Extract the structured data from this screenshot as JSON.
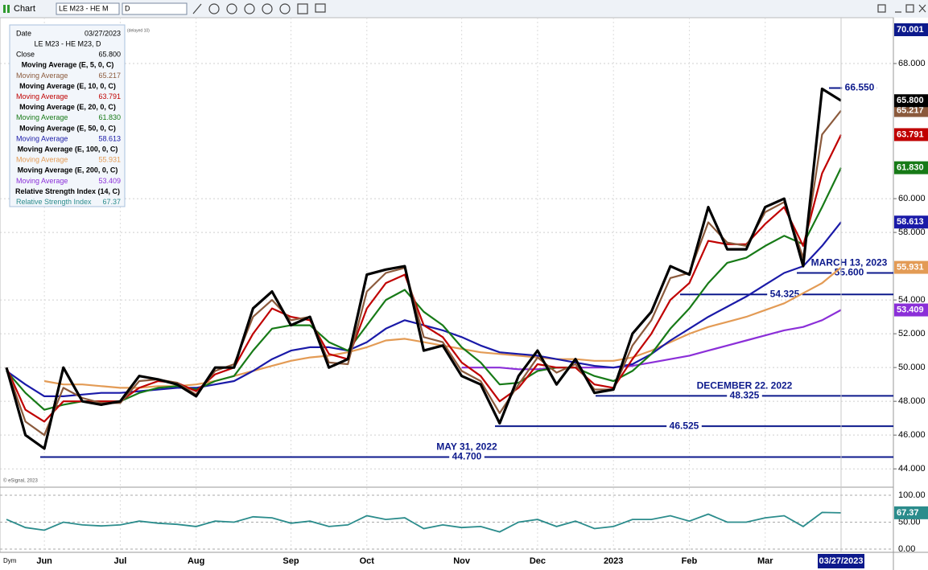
{
  "toolbar": {
    "title": "Chart",
    "symbol": "LE M23 - HE M",
    "interval": "D"
  },
  "chart_data": {
    "type": "line",
    "symbol_label": "LE M23 - HE M23, D",
    "info_date_label": "Date",
    "delay_note": "(delayed 10)",
    "copyright": "© eSignal, 2023",
    "footer_label": "Dym",
    "categories": [
      null,
      null,
      "Jun",
      null,
      null,
      null,
      "Jul",
      null,
      null,
      null,
      "Aug",
      null,
      null,
      null,
      null,
      "Sep",
      null,
      null,
      null,
      "Oct",
      null,
      null,
      null,
      null,
      "Nov",
      null,
      null,
      null,
      "Dec",
      null,
      null,
      null,
      "2023",
      null,
      null,
      null,
      "Feb",
      null,
      null,
      null,
      "Mar",
      null,
      null,
      null,
      "03/27/2023"
    ],
    "ylim": [
      43.2,
      70.001
    ],
    "top_label": {
      "value": 70.001,
      "label": "70.001"
    },
    "yticks": [
      {
        "value": 44,
        "label": "44.000"
      },
      {
        "value": 46,
        "label": "46.000"
      },
      {
        "value": 48,
        "label": "48.000"
      },
      {
        "value": 50,
        "label": "50.000"
      },
      {
        "value": 52,
        "label": "52.000"
      },
      {
        "value": 54,
        "label": "54.000"
      },
      {
        "value": 58,
        "label": "58.000"
      },
      {
        "value": 60,
        "label": "60.000"
      },
      {
        "value": 68,
        "label": "68.000"
      }
    ],
    "grid": true,
    "series": [
      {
        "name": "Moving Average",
        "study": "Moving Average (E, 100, 0, C)",
        "color": "#e39b55",
        "width": 2.2,
        "last_label": "55.931",
        "values": [
          null,
          null,
          49.2,
          49,
          49,
          48.9,
          48.8,
          48.8,
          48.9,
          48.9,
          49,
          49.2,
          49.5,
          49.8,
          50.1,
          50.4,
          50.6,
          50.7,
          50.9,
          51.2,
          51.6,
          51.7,
          51.5,
          51.3,
          51.1,
          50.9,
          50.8,
          50.7,
          50.6,
          50.5,
          50.5,
          50.4,
          50.4,
          50.6,
          51,
          51.5,
          52,
          52.4,
          52.7,
          53,
          53.4,
          53.8,
          54.4,
          55,
          55.931
        ]
      },
      {
        "name": "Moving Average",
        "study": "Moving Average (E, 200, 0, C)",
        "color": "#8b2fd8",
        "width": 2.2,
        "last_label": "53.409",
        "values": [
          null,
          null,
          null,
          null,
          null,
          null,
          null,
          null,
          null,
          null,
          null,
          null,
          null,
          null,
          null,
          null,
          null,
          null,
          null,
          null,
          null,
          null,
          null,
          null,
          50,
          50,
          50,
          49.9,
          49.9,
          50,
          50,
          50,
          50,
          50.1,
          50.3,
          50.5,
          50.7,
          51,
          51.3,
          51.6,
          51.9,
          52.2,
          52.4,
          52.8,
          53.409
        ]
      },
      {
        "name": "Moving Average",
        "study": "Moving Average (E, 50, 0, C)",
        "color": "#1a1aa8",
        "width": 2.2,
        "last_label": "58.613",
        "values": [
          49.8,
          49,
          48.3,
          48.3,
          48.4,
          48.5,
          48.5,
          48.6,
          48.7,
          48.8,
          48.8,
          49,
          49.2,
          49.8,
          50.5,
          51,
          51.2,
          51.2,
          51,
          51.5,
          52.3,
          52.8,
          52.5,
          52.2,
          51.8,
          51.3,
          50.9,
          50.8,
          50.7,
          50.5,
          50.3,
          50.1,
          50,
          50.2,
          50.8,
          51.6,
          52.3,
          53,
          53.6,
          54.2,
          54.9,
          55.6,
          56,
          57.2,
          58.613
        ]
      },
      {
        "name": "Moving Average",
        "study": "Moving Average (E, 20, 0, C)",
        "color": "#177a17",
        "width": 2.2,
        "last_label": "61.830",
        "values": [
          49.8,
          48.5,
          47.5,
          47.8,
          48,
          48,
          48,
          48.5,
          48.8,
          48.9,
          48.7,
          49.2,
          49.5,
          51,
          52.3,
          52.5,
          52.5,
          51.5,
          51,
          52.5,
          54,
          54.6,
          53.3,
          52.5,
          51.2,
          50.3,
          49,
          49.1,
          49.8,
          50,
          50,
          49.5,
          49.2,
          49.8,
          50.8,
          52.3,
          53.5,
          55,
          56.2,
          56.5,
          57.2,
          57.8,
          57.3,
          59.5,
          61.83
        ]
      },
      {
        "name": "Moving Average",
        "study": "Moving Average (E, 10, 0, C)",
        "color": "#c00000",
        "width": 2.2,
        "last_label": "63.791",
        "values": [
          50,
          47.5,
          46.8,
          48,
          48,
          48,
          48,
          48.8,
          49.2,
          49.1,
          48.6,
          49.6,
          50,
          52,
          53.5,
          53,
          52.8,
          50.8,
          50.5,
          53.5,
          55,
          55.5,
          52.5,
          51.8,
          50.3,
          49.5,
          48,
          48.8,
          50.2,
          50,
          50,
          49,
          48.8,
          50.5,
          52,
          54,
          55,
          57.5,
          57.3,
          57.3,
          58.5,
          59.5,
          57.2,
          61.5,
          63.791
        ]
      },
      {
        "name": "Moving Average",
        "study": "Moving Average (E, 5, 0, C)",
        "color": "#8b5a3c",
        "width": 2.2,
        "last_label": "65.217",
        "values": [
          50,
          46.8,
          46,
          48.8,
          48.2,
          47.9,
          47.9,
          49.2,
          49.3,
          49.1,
          48.4,
          49.8,
          50.2,
          53,
          54,
          52.8,
          53,
          50.3,
          50.2,
          54.5,
          55.6,
          55.9,
          51.8,
          51.5,
          49.8,
          49.2,
          47.3,
          49,
          50.6,
          49.7,
          50.2,
          48.7,
          48.7,
          51.3,
          52.8,
          55.3,
          55.6,
          58.6,
          57.4,
          57.2,
          59.2,
          59.8,
          56.5,
          63.8,
          65.217
        ]
      },
      {
        "name": "Close",
        "color": "#000000",
        "width": 3.2,
        "last_label": "65.800",
        "values": [
          50,
          46,
          45.2,
          50,
          48,
          47.8,
          48,
          49.5,
          49.3,
          49,
          48.3,
          50,
          50,
          53.5,
          54.5,
          52.5,
          53,
          50,
          50.5,
          55.5,
          55.8,
          56,
          51,
          51.3,
          49.5,
          49,
          46.7,
          49.5,
          51,
          49,
          50.5,
          48.5,
          48.7,
          52,
          53.3,
          56,
          55.5,
          59.5,
          57,
          57,
          59.5,
          60,
          56,
          66.5,
          65.8
        ]
      }
    ],
    "info_order": [
      6,
      5,
      4,
      3,
      2,
      0,
      1
    ],
    "levels": [
      {
        "value": 66.55,
        "label": "66.550"
      },
      {
        "value": 55.6,
        "label": "55.600",
        "note": "MARCH 13, 2023"
      },
      {
        "value": 54.325,
        "label": "54.325"
      },
      {
        "value": 48.325,
        "label": "48.325",
        "note": "DECEMBER 22. 2022"
      },
      {
        "value": 46.525,
        "label": "46.525"
      },
      {
        "value": 44.7,
        "label": "44.700",
        "note": "MAY 31, 2022"
      }
    ],
    "rsi": {
      "name": "Relative Strength Index",
      "study": "Relative Strength Index (14, C)",
      "color": "#2b8c8c",
      "last_label": "67.37",
      "ylim": [
        0,
        100
      ],
      "yticks": [
        {
          "value": 0,
          "label": "0.00"
        },
        {
          "value": 50,
          "label": "50.00"
        },
        {
          "value": 100,
          "label": "100.00"
        }
      ],
      "values": [
        55,
        40,
        35,
        50,
        45,
        43,
        45,
        52,
        48,
        46,
        42,
        52,
        50,
        60,
        58,
        48,
        52,
        42,
        45,
        62,
        55,
        58,
        38,
        45,
        40,
        42,
        32,
        50,
        55,
        42,
        52,
        38,
        42,
        55,
        55,
        62,
        52,
        65,
        50,
        50,
        58,
        62,
        42,
        68,
        67.37
      ]
    }
  }
}
